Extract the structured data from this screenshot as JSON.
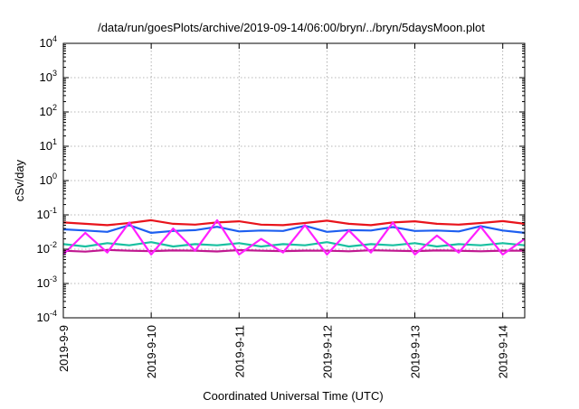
{
  "colors": {
    "background": "#ffffff",
    "axis": "#000000",
    "grid": "#a0a0a0",
    "series": [
      "#e8141c",
      "#1e5ff0",
      "#18c0a0",
      "#c01890",
      "#ff20ff"
    ]
  },
  "chart_data": {
    "type": "line",
    "title": "/data/run/goesPlots/archive/2019-09-14/06:00/bryn/../bryn/5daysMoon.plot",
    "xlabel": "Coordinated Universal Time (UTC)",
    "ylabel": "cSv/day",
    "yscale": "log",
    "ylim": [
      0.0001,
      10000
    ],
    "y_ticks": [
      {
        "value": 0.0001,
        "base": "10",
        "exp": "-4"
      },
      {
        "value": 0.001,
        "base": "10",
        "exp": "-3"
      },
      {
        "value": 0.01,
        "base": "10",
        "exp": "-2"
      },
      {
        "value": 0.1,
        "base": "10",
        "exp": "-1"
      },
      {
        "value": 1,
        "base": "10",
        "exp": "0"
      },
      {
        "value": 10,
        "base": "10",
        "exp": "1"
      },
      {
        "value": 100,
        "base": "10",
        "exp": "2"
      },
      {
        "value": 1000,
        "base": "10",
        "exp": "3"
      },
      {
        "value": 10000,
        "base": "10",
        "exp": "4"
      }
    ],
    "xlim": [
      "2019-09-09 00:00",
      "2019-09-14 06:00"
    ],
    "x_ticks": [
      {
        "value": "2019-09-09 00:00",
        "label": "2019-9-9"
      },
      {
        "value": "2019-09-10 00:00",
        "label": "2019-9-10"
      },
      {
        "value": "2019-09-11 00:00",
        "label": "2019-9-11"
      },
      {
        "value": "2019-09-12 00:00",
        "label": "2019-9-12"
      },
      {
        "value": "2019-09-13 00:00",
        "label": "2019-9-13"
      },
      {
        "value": "2019-09-14 00:00",
        "label": "2019-9-14"
      }
    ],
    "grid": true,
    "legend": "none",
    "series": [
      {
        "color": "#e8141c",
        "x": [
          "2019-09-09 00:00",
          "2019-09-09 06:00",
          "2019-09-09 12:00",
          "2019-09-09 18:00",
          "2019-09-10 00:00",
          "2019-09-10 06:00",
          "2019-09-10 12:00",
          "2019-09-10 18:00",
          "2019-09-11 00:00",
          "2019-09-11 06:00",
          "2019-09-11 12:00",
          "2019-09-11 18:00",
          "2019-09-12 00:00",
          "2019-09-12 06:00",
          "2019-09-12 12:00",
          "2019-09-12 18:00",
          "2019-09-13 00:00",
          "2019-09-13 06:00",
          "2019-09-13 12:00",
          "2019-09-13 18:00",
          "2019-09-14 00:00",
          "2019-09-14 06:00"
        ],
        "values": [
          0.06,
          0.055,
          0.05,
          0.058,
          0.07,
          0.055,
          0.052,
          0.06,
          0.065,
          0.052,
          0.05,
          0.058,
          0.068,
          0.055,
          0.05,
          0.06,
          0.065,
          0.055,
          0.052,
          0.058,
          0.066,
          0.055
        ]
      },
      {
        "color": "#1e5ff0",
        "x": [
          "2019-09-09 00:00",
          "2019-09-09 06:00",
          "2019-09-09 12:00",
          "2019-09-09 18:00",
          "2019-09-10 00:00",
          "2019-09-10 06:00",
          "2019-09-10 12:00",
          "2019-09-10 18:00",
          "2019-09-11 00:00",
          "2019-09-11 06:00",
          "2019-09-11 12:00",
          "2019-09-11 18:00",
          "2019-09-12 00:00",
          "2019-09-12 06:00",
          "2019-09-12 12:00",
          "2019-09-12 18:00",
          "2019-09-13 00:00",
          "2019-09-13 06:00",
          "2019-09-13 12:00",
          "2019-09-13 18:00",
          "2019-09-14 00:00",
          "2019-09-14 06:00"
        ],
        "values": [
          0.038,
          0.035,
          0.032,
          0.05,
          0.03,
          0.034,
          0.036,
          0.045,
          0.033,
          0.035,
          0.034,
          0.048,
          0.032,
          0.036,
          0.035,
          0.044,
          0.034,
          0.035,
          0.033,
          0.047,
          0.035,
          0.03
        ]
      },
      {
        "color": "#18c0a0",
        "x": [
          "2019-09-09 00:00",
          "2019-09-09 06:00",
          "2019-09-09 12:00",
          "2019-09-09 18:00",
          "2019-09-10 00:00",
          "2019-09-10 06:00",
          "2019-09-10 12:00",
          "2019-09-10 18:00",
          "2019-09-11 00:00",
          "2019-09-11 06:00",
          "2019-09-11 12:00",
          "2019-09-11 18:00",
          "2019-09-12 00:00",
          "2019-09-12 06:00",
          "2019-09-12 12:00",
          "2019-09-12 18:00",
          "2019-09-13 00:00",
          "2019-09-13 06:00",
          "2019-09-13 12:00",
          "2019-09-13 18:00",
          "2019-09-14 00:00",
          "2019-09-14 06:00"
        ],
        "values": [
          0.014,
          0.012,
          0.015,
          0.013,
          0.016,
          0.012,
          0.014,
          0.013,
          0.015,
          0.012,
          0.014,
          0.013,
          0.016,
          0.012,
          0.014,
          0.013,
          0.015,
          0.012,
          0.014,
          0.013,
          0.015,
          0.013
        ]
      },
      {
        "color": "#c01890",
        "x": [
          "2019-09-09 00:00",
          "2019-09-09 06:00",
          "2019-09-09 12:00",
          "2019-09-09 18:00",
          "2019-09-10 00:00",
          "2019-09-10 06:00",
          "2019-09-10 12:00",
          "2019-09-10 18:00",
          "2019-09-11 00:00",
          "2019-09-11 06:00",
          "2019-09-11 12:00",
          "2019-09-11 18:00",
          "2019-09-12 00:00",
          "2019-09-12 06:00",
          "2019-09-12 12:00",
          "2019-09-12 18:00",
          "2019-09-13 00:00",
          "2019-09-13 06:00",
          "2019-09-13 12:00",
          "2019-09-13 18:00",
          "2019-09-14 00:00",
          "2019-09-14 06:00"
        ],
        "values": [
          0.009,
          0.0085,
          0.0095,
          0.009,
          0.0088,
          0.0092,
          0.009,
          0.0086,
          0.0094,
          0.009,
          0.0088,
          0.0091,
          0.009,
          0.0087,
          0.0093,
          0.009,
          0.0088,
          0.0092,
          0.009,
          0.0087,
          0.0091,
          0.009
        ]
      },
      {
        "color": "#ff20ff",
        "x": [
          "2019-09-09 00:00",
          "2019-09-09 06:00",
          "2019-09-09 12:00",
          "2019-09-09 18:00",
          "2019-09-10 00:00",
          "2019-09-10 06:00",
          "2019-09-10 12:00",
          "2019-09-10 18:00",
          "2019-09-11 00:00",
          "2019-09-11 06:00",
          "2019-09-11 12:00",
          "2019-09-11 18:00",
          "2019-09-12 00:00",
          "2019-09-12 06:00",
          "2019-09-12 12:00",
          "2019-09-12 18:00",
          "2019-09-13 00:00",
          "2019-09-13 06:00",
          "2019-09-13 12:00",
          "2019-09-13 18:00",
          "2019-09-14 00:00",
          "2019-09-14 06:00"
        ],
        "values": [
          0.007,
          0.03,
          0.008,
          0.06,
          0.007,
          0.04,
          0.009,
          0.07,
          0.007,
          0.02,
          0.008,
          0.05,
          0.007,
          0.035,
          0.008,
          0.06,
          0.007,
          0.025,
          0.008,
          0.045,
          0.007,
          0.02
        ]
      }
    ]
  }
}
